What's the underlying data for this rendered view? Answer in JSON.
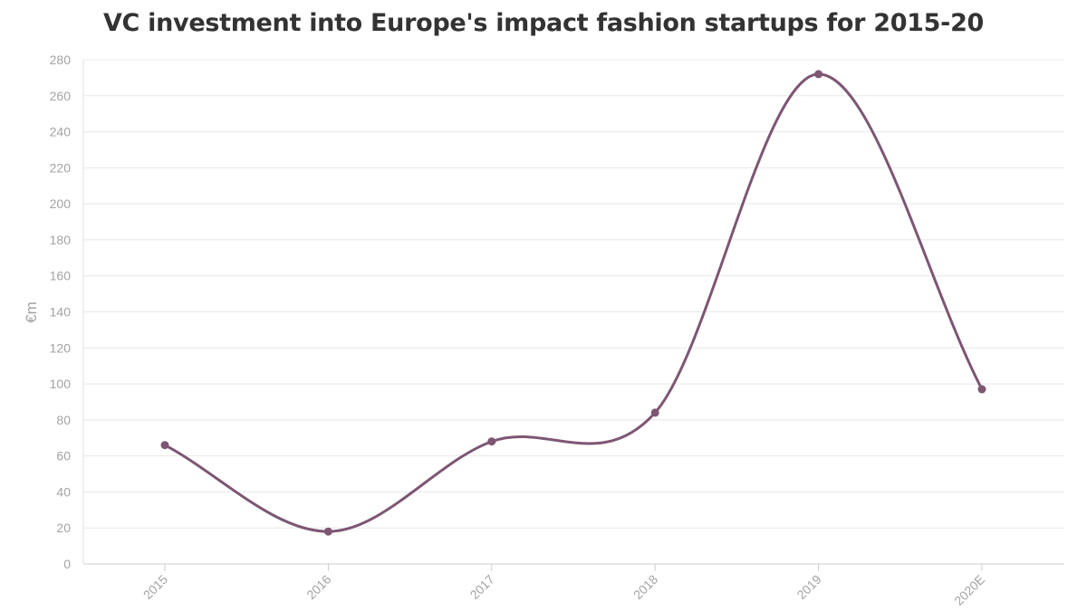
{
  "chart_data": {
    "type": "line",
    "title": "VC investment into Europe's impact fashion startups for 2015-20",
    "xlabel": "",
    "ylabel": "€m",
    "categories": [
      "2015",
      "2016",
      "2017",
      "2018",
      "2019",
      "2020E"
    ],
    "series": [
      {
        "values": [
          66,
          18,
          68,
          84,
          272,
          97
        ],
        "color": "#7d5673"
      }
    ],
    "ylim": [
      0,
      280
    ],
    "yticks": [
      0,
      20,
      40,
      60,
      80,
      100,
      120,
      140,
      160,
      180,
      200,
      220,
      240,
      260,
      280
    ],
    "grid": true,
    "legend": "none",
    "smooth": true
  }
}
